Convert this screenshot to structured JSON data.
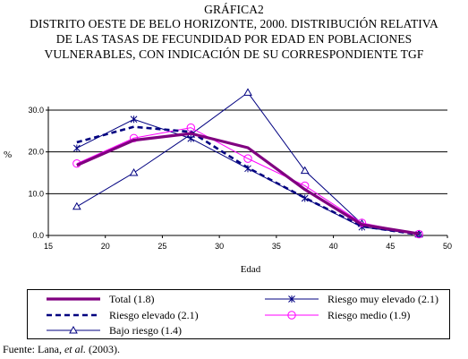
{
  "title_lines": [
    "GRÁFICA2",
    "DISTRITO OESTE DE BELO HORIZONTE, 2000. DISTRIBUCIÓN RELATIVA",
    "DE LAS TASAS DE FECUNDIDAD POR EDAD EN POBLACIONES",
    "VULNERABLES, CON INDICACIÓN DE SU CORRESPONDIENTE TGF"
  ],
  "source": {
    "prefix": "Fuente: Lana, ",
    "italic": "et al.",
    "suffix": " (2003)."
  },
  "chart_data": {
    "type": "line",
    "xlabel": "Edad",
    "ylabel": "%",
    "xlim": [
      15,
      50
    ],
    "ylim": [
      0,
      30
    ],
    "x_ticks": [
      "15",
      "20",
      "25",
      "30",
      "35",
      "40",
      "45",
      "50"
    ],
    "y_ticks": [
      "0.0",
      "10.0",
      "20.0",
      "30.0"
    ],
    "grid": "horizontal",
    "x": [
      17.5,
      22.5,
      27.5,
      32.5,
      37.5,
      42.5,
      47.5
    ],
    "series": [
      {
        "name": "Total (1.8)",
        "color": "#800080",
        "style": "thick",
        "values": [
          16.8,
          22.8,
          24.4,
          21.0,
          11.0,
          2.6,
          0.4
        ]
      },
      {
        "name": "Riesgo elevado (2.1)",
        "color": "#000080",
        "style": "dashed",
        "values": [
          22.3,
          26.0,
          24.8,
          16.2,
          9.0,
          2.2,
          0.2
        ]
      },
      {
        "name": "Bajo riesgo (1.4)",
        "color": "#000080",
        "style": "triangle",
        "values": [
          6.9,
          15.0,
          24.2,
          34.2,
          15.5,
          2.8,
          0.3
        ]
      },
      {
        "name": "Riesgo muy elevado (2.1)",
        "color": "#000080",
        "style": "asterisk",
        "values": [
          20.9,
          27.8,
          23.2,
          16.0,
          8.9,
          2.0,
          0.3
        ]
      },
      {
        "name": "Riesgo medio (1.9)",
        "color": "#ff00ff",
        "style": "circle",
        "values": [
          17.2,
          23.3,
          25.8,
          18.4,
          11.9,
          3.0,
          0.3
        ]
      }
    ]
  }
}
